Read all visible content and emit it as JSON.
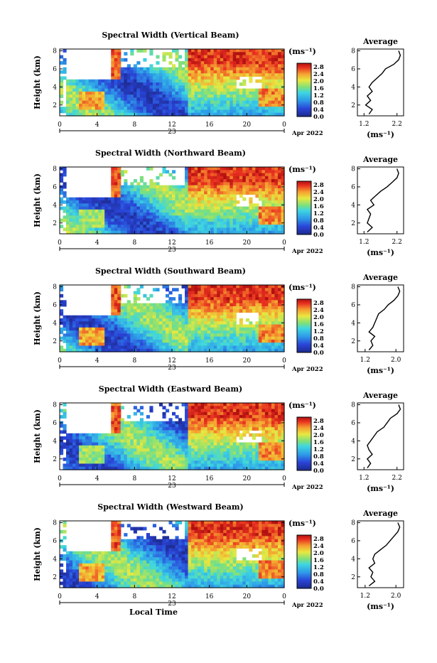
{
  "chart_data": [
    {
      "type": "heatmap",
      "title": "Spectral Width (Vertical Beam)",
      "ylabel": "Height (km)",
      "yticks": [
        "2",
        "4",
        "6",
        "8"
      ],
      "ylim": [
        0.8,
        8.2
      ],
      "xticks": [
        "0",
        "4",
        "8",
        "12",
        "16",
        "20",
        "0"
      ],
      "xlim": [
        0,
        24
      ],
      "day_label": "23",
      "date_label": "Apr 2022",
      "colorbar": {
        "unit": "(ms⁻¹)",
        "ticks": [
          "0.0",
          "0.4",
          "0.8",
          "1.2",
          "1.6",
          "2.0",
          "2.4",
          "2.8"
        ],
        "range": [
          0.0,
          3.0
        ]
      },
      "average_profile": {
        "title": "Average",
        "xlabel": "(ms⁻¹)",
        "xticks": [
          "1.2",
          "2.2"
        ],
        "xlim": [
          1.0,
          2.4
        ],
        "yticks": [
          "2",
          "4",
          "6",
          "8"
        ],
        "height_km": [
          1.0,
          1.5,
          2.0,
          2.5,
          3.0,
          3.5,
          4.0,
          4.5,
          5.0,
          5.5,
          6.0,
          6.5,
          7.0,
          7.5,
          8.0
        ],
        "values": [
          1.35,
          1.45,
          1.25,
          1.4,
          1.3,
          1.45,
          1.35,
          1.45,
          1.6,
          1.75,
          1.85,
          2.1,
          2.25,
          2.3,
          2.25
        ]
      }
    },
    {
      "type": "heatmap",
      "title": "Spectral Width (Northward Beam)",
      "ylabel": "Height (km)",
      "yticks": [
        "2",
        "4",
        "6",
        "8"
      ],
      "ylim": [
        0.8,
        8.2
      ],
      "xticks": [
        "0",
        "4",
        "8",
        "12",
        "16",
        "20",
        "0"
      ],
      "xlim": [
        0,
        24
      ],
      "day_label": "23",
      "date_label": "Apr 2022",
      "colorbar": {
        "unit": "(ms⁻¹)",
        "ticks": [
          "0.0",
          "0.4",
          "0.8",
          "1.2",
          "1.6",
          "2.0",
          "2.4",
          "2.8"
        ],
        "range": [
          0.0,
          3.0
        ]
      },
      "average_profile": {
        "title": "Average",
        "xlabel": "(ms⁻¹)",
        "xticks": [
          "1.2",
          "2.2"
        ],
        "xlim": [
          1.0,
          2.4
        ],
        "yticks": [
          "2",
          "4",
          "6",
          "8"
        ],
        "height_km": [
          1.0,
          1.5,
          2.0,
          2.5,
          3.0,
          3.5,
          4.0,
          4.5,
          5.0,
          5.5,
          6.0,
          6.5,
          7.0,
          7.5,
          8.0
        ],
        "values": [
          1.3,
          1.45,
          1.3,
          1.35,
          1.4,
          1.3,
          1.5,
          1.4,
          1.55,
          1.7,
          1.9,
          2.05,
          2.2,
          2.25,
          2.2
        ]
      }
    },
    {
      "type": "heatmap",
      "title": "Spectral Width (Southward Beam)",
      "ylabel": "Height (km)",
      "yticks": [
        "2",
        "4",
        "6",
        "8"
      ],
      "ylim": [
        0.8,
        8.2
      ],
      "xticks": [
        "0",
        "4",
        "8",
        "12",
        "16",
        "20",
        "0"
      ],
      "xlim": [
        0,
        24
      ],
      "day_label": "23",
      "date_label": "Apr 2022",
      "colorbar": {
        "unit": "(ms⁻¹)",
        "ticks": [
          "0.0",
          "0.4",
          "0.8",
          "1.2",
          "1.6",
          "2.0",
          "2.4",
          "2.8"
        ],
        "range": [
          0.0,
          3.0
        ]
      },
      "average_profile": {
        "title": "Average",
        "xlabel": "(ms⁻¹)",
        "xticks": [
          "1.2",
          "2.0"
        ],
        "xlim": [
          1.0,
          2.2
        ],
        "yticks": [
          "2",
          "4",
          "6",
          "8"
        ],
        "height_km": [
          1.0,
          1.5,
          2.0,
          2.5,
          3.0,
          3.5,
          4.0,
          4.5,
          5.0,
          5.5,
          6.0,
          6.5,
          7.0,
          7.5,
          8.0
        ],
        "values": [
          1.3,
          1.4,
          1.35,
          1.45,
          1.3,
          1.4,
          1.45,
          1.5,
          1.55,
          1.7,
          1.8,
          1.95,
          2.05,
          2.1,
          2.05
        ]
      }
    },
    {
      "type": "heatmap",
      "title": "Spectral Width (Eastward Beam)",
      "ylabel": "Height (km)",
      "yticks": [
        "2",
        "4",
        "6",
        "8"
      ],
      "ylim": [
        0.8,
        8.2
      ],
      "xticks": [
        "0",
        "4",
        "8",
        "12",
        "16",
        "20",
        "0"
      ],
      "xlim": [
        0,
        24
      ],
      "day_label": "23",
      "date_label": "Apr 2022",
      "colorbar": {
        "unit": "(ms⁻¹)",
        "ticks": [
          "0.0",
          "0.4",
          "0.8",
          "1.2",
          "1.6",
          "2.0",
          "2.4",
          "2.8"
        ],
        "range": [
          0.0,
          3.0
        ]
      },
      "average_profile": {
        "title": "Average",
        "xlabel": "(ms⁻¹)",
        "xticks": [
          "1.2",
          "2.2"
        ],
        "xlim": [
          1.0,
          2.4
        ],
        "yticks": [
          "2",
          "4",
          "6",
          "8"
        ],
        "height_km": [
          1.0,
          1.5,
          2.0,
          2.5,
          3.0,
          3.5,
          4.0,
          4.5,
          5.0,
          5.5,
          6.0,
          6.5,
          7.0,
          7.5,
          8.0
        ],
        "values": [
          1.3,
          1.4,
          1.3,
          1.45,
          1.35,
          1.3,
          1.4,
          1.5,
          1.6,
          1.8,
          1.9,
          2.0,
          2.2,
          2.3,
          2.25
        ]
      }
    },
    {
      "type": "heatmap",
      "title": "Spectral Width (Westward Beam)",
      "ylabel": "Height (km)",
      "yticks": [
        "2",
        "4",
        "6",
        "8"
      ],
      "ylim": [
        0.8,
        8.2
      ],
      "xticks": [
        "0",
        "4",
        "8",
        "12",
        "16",
        "20",
        "0"
      ],
      "xlim": [
        0,
        24
      ],
      "day_label": "23",
      "date_label": "Apr 2022",
      "xlabel": "Local Time",
      "colorbar": {
        "unit": "(ms⁻¹)",
        "ticks": [
          "0.0",
          "0.4",
          "0.8",
          "1.2",
          "1.6",
          "2.0",
          "2.4",
          "2.8"
        ],
        "range": [
          0.0,
          3.0
        ]
      },
      "average_profile": {
        "title": "Average",
        "xlabel": "(ms⁻¹)",
        "xticks": [
          "1.2",
          "2.0"
        ],
        "xlim": [
          1.0,
          2.2
        ],
        "yticks": [
          "2",
          "4",
          "6",
          "8"
        ],
        "height_km": [
          1.0,
          1.5,
          2.0,
          2.5,
          3.0,
          3.5,
          4.0,
          4.5,
          5.0,
          5.5,
          6.0,
          6.5,
          7.0,
          7.5,
          8.0
        ],
        "values": [
          1.3,
          1.45,
          1.35,
          1.4,
          1.3,
          1.45,
          1.4,
          1.45,
          1.6,
          1.75,
          1.85,
          1.95,
          2.05,
          2.1,
          2.05
        ]
      }
    }
  ]
}
